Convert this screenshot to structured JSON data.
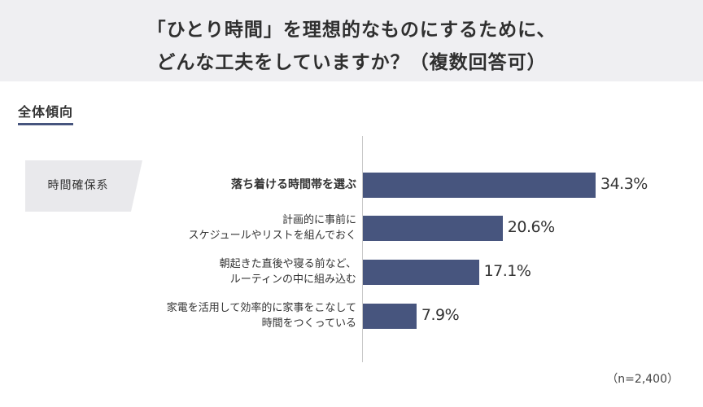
{
  "header": {
    "title_line1": "「ひとり時間」を理想的なものにするために、",
    "title_line2": "どんな工夫をしていますか？（複数回答可）"
  },
  "section": {
    "title": "全体傾向"
  },
  "group": {
    "label": "時間確保系"
  },
  "colors": {
    "bar": "#47557e",
    "header_bg": "#efeff2",
    "group_bg": "#e9e9ec"
  },
  "note": "（n=2,400）",
  "chart_data": {
    "type": "bar",
    "orientation": "horizontal",
    "categories": [
      "落ち着ける時間帯を選ぶ",
      "計画的に事前に\nスケジュールやリストを組んでおく",
      "朝起きた直後や寝る前など、\nルーティンの中に組み込む",
      "家電を活用して効率的に家事をこなして\n時間をつくっている"
    ],
    "values": [
      34.3,
      20.6,
      17.1,
      7.9
    ],
    "value_labels": [
      "34.3%",
      "20.6%",
      "17.1%",
      "7.9%"
    ],
    "unit": "%",
    "xlim": [
      0,
      40
    ],
    "highlight_index": 0,
    "grid": false,
    "legend": "none"
  }
}
